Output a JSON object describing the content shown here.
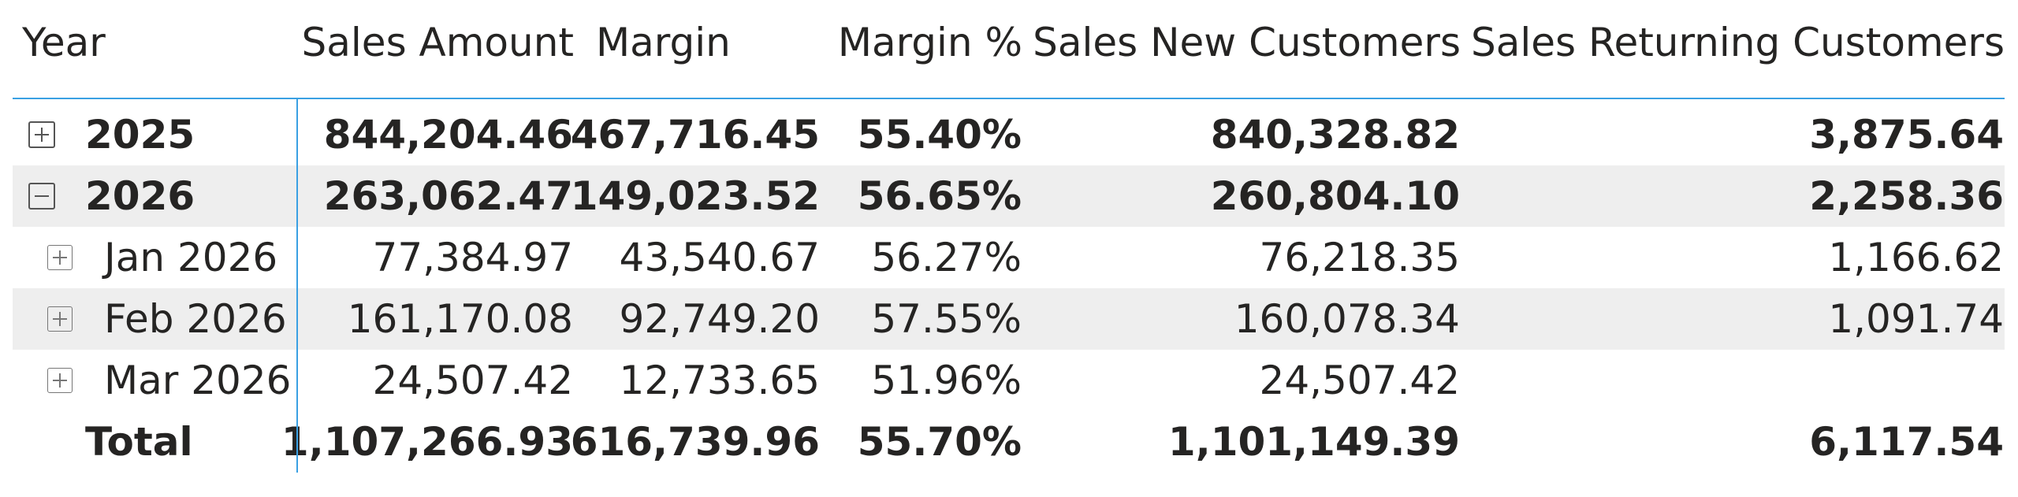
{
  "matrix": {
    "headers": {
      "year": "Year",
      "sales_amount": "Sales Amount",
      "margin": "Margin",
      "margin_pct": "Margin %",
      "sales_new": "Sales New Customers",
      "sales_returning": "Sales Returning Customers"
    },
    "rows": [
      {
        "label": "2025",
        "expander": "plus-icon",
        "sales_amount": "844,204.46",
        "margin": "467,716.45",
        "margin_pct": "55.40%",
        "sales_new": "840,328.82",
        "sales_returning": "3,875.64"
      },
      {
        "label": "2026",
        "expander": "minus-icon",
        "sales_amount": "263,062.47",
        "margin": "149,023.52",
        "margin_pct": "56.65%",
        "sales_new": "260,804.10",
        "sales_returning": "2,258.36"
      },
      {
        "label": "Jan 2026",
        "expander": "plus-icon",
        "sales_amount": "77,384.97",
        "margin": "43,540.67",
        "margin_pct": "56.27%",
        "sales_new": "76,218.35",
        "sales_returning": "1,166.62"
      },
      {
        "label": "Feb 2026",
        "expander": "plus-icon",
        "sales_amount": "161,170.08",
        "margin": "92,749.20",
        "margin_pct": "57.55%",
        "sales_new": "160,078.34",
        "sales_returning": "1,091.74"
      },
      {
        "label": "Mar 2026",
        "expander": "plus-icon",
        "sales_amount": "24,507.42",
        "margin": "12,733.65",
        "margin_pct": "51.96%",
        "sales_new": "24,507.42",
        "sales_returning": ""
      }
    ],
    "total": {
      "label": "Total",
      "sales_amount": "1,107,266.93",
      "margin": "616,739.96",
      "margin_pct": "55.70%",
      "sales_new": "1,101,149.39",
      "sales_returning": "6,117.54"
    },
    "colors": {
      "accent_line": "#3aa0e3",
      "row_shade": "#eeeeee",
      "text": "#252423"
    }
  }
}
